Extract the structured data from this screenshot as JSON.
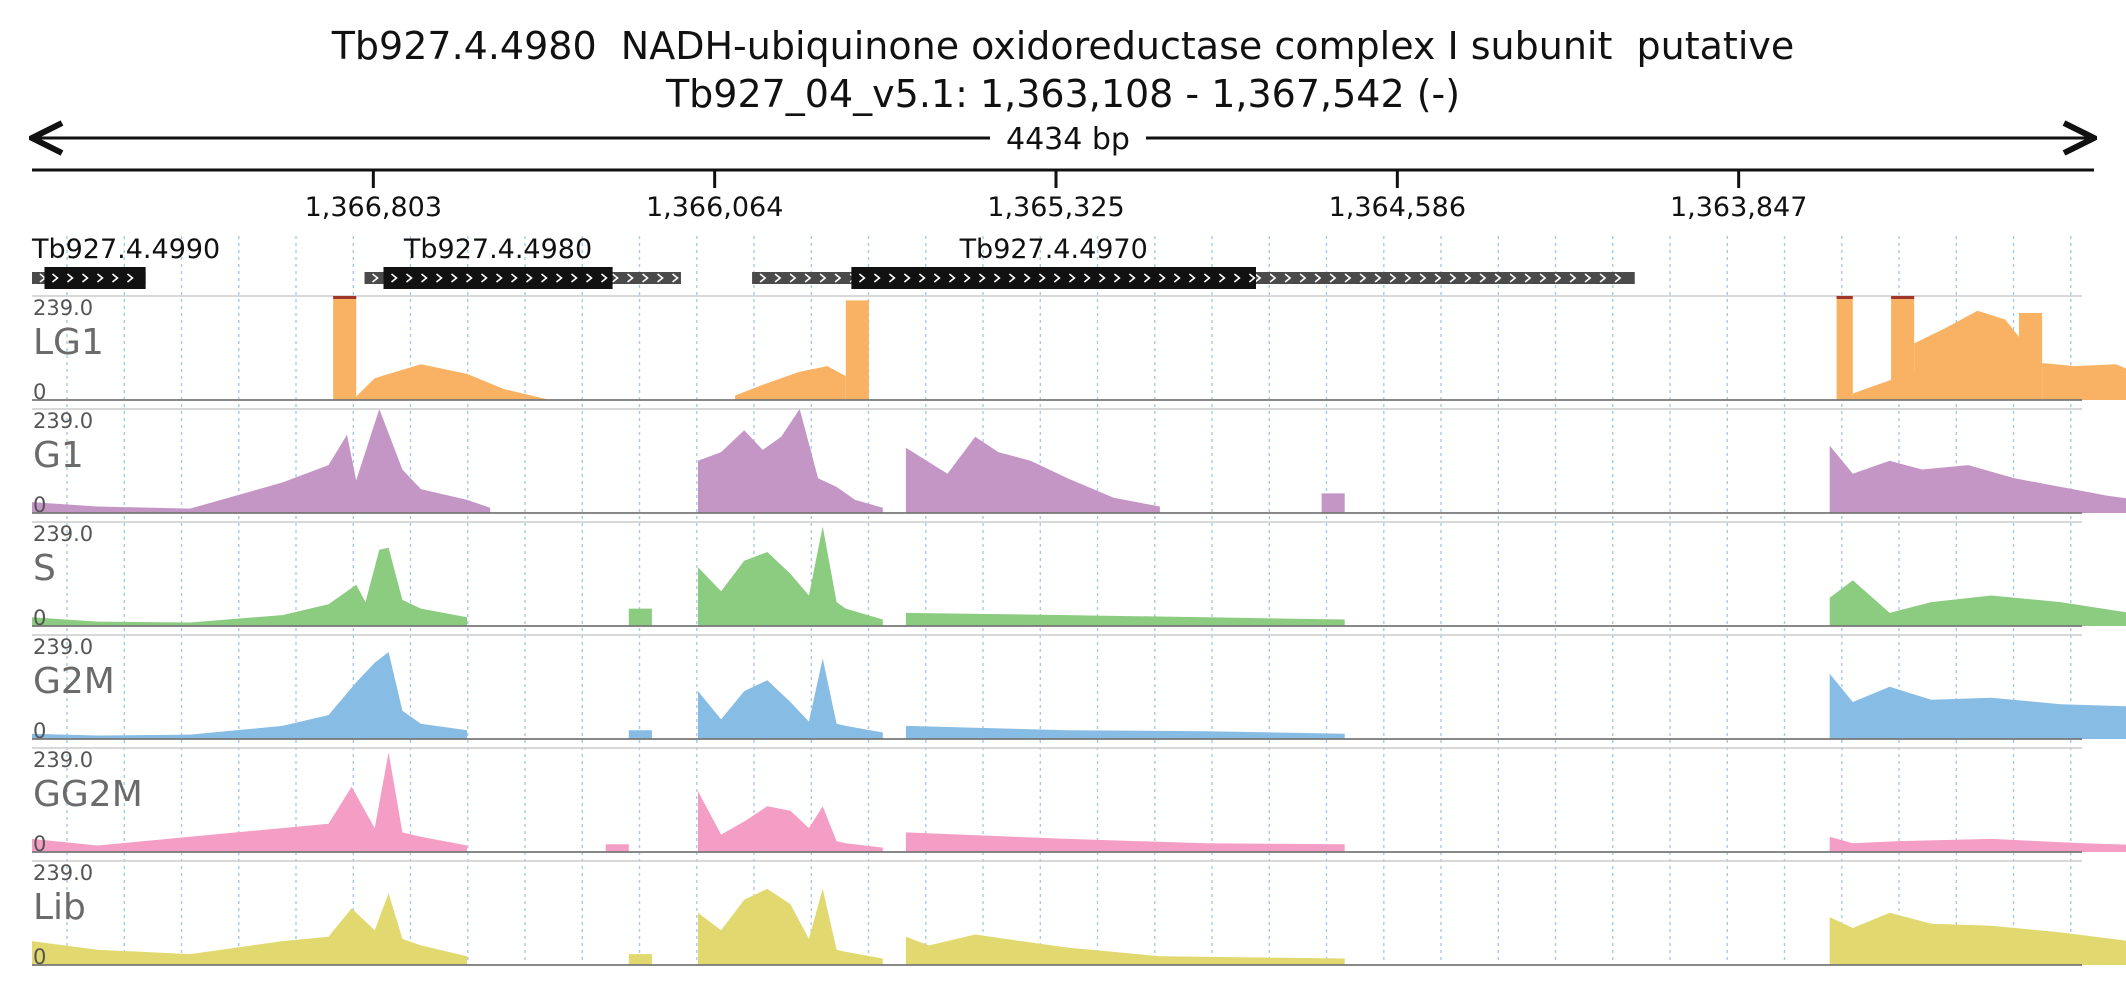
{
  "header": {
    "title": "Tb927.4.4980  NADH-ubiquinone oxidoreductase complex I subunit  putative",
    "locus": "Tb927_04_v5.1: 1,363,108 - 1,367,542 (-)",
    "span_label": "4434 bp"
  },
  "chart_data": {
    "type": "area",
    "region": {
      "chrom": "Tb927_04_v5.1",
      "start": 1363108,
      "end": 1367542,
      "strand": "-"
    },
    "coordinate_ticks": [
      {
        "pos": 1366803,
        "label": "1,366,803"
      },
      {
        "pos": 1366064,
        "label": "1,366,064"
      },
      {
        "pos": 1365325,
        "label": "1,365,325"
      },
      {
        "pos": 1364586,
        "label": "1,364,586"
      },
      {
        "pos": 1363847,
        "label": "1,363,847"
      }
    ],
    "genes": [
      {
        "name": "Tb927.4.4990",
        "show_label": true,
        "utr": [
          1367296,
          1367542
        ],
        "cds": [
          1367296,
          1367515
        ]
      },
      {
        "name": "Tb927.4.4980",
        "show_label": true,
        "utr": [
          1366137,
          1366822
        ],
        "cds": [
          1366285,
          1366781
        ]
      },
      {
        "name": "Tb927.4.4970",
        "show_label": true,
        "utr": [
          1364072,
          1365983
        ],
        "cds": [
          1364892,
          1365768
        ]
      }
    ],
    "ymin": 0,
    "ymax": 239.0,
    "ymax_label": "239.0",
    "ymin_label": "0",
    "grid": "vertical dashed",
    "tracks": [
      {
        "name": "LG1",
        "color": "#f9b263",
        "segments": [
          {
            "x": [
              1366890,
              1366840
            ],
            "y": [
              239,
              239
            ]
          },
          {
            "x": [
              1366840,
              1366800,
              1366700,
              1366600,
              1366520,
              1366420
            ],
            "y": [
              8,
              50,
              82,
              60,
              25,
              0
            ]
          },
          {
            "x": [
              1366020,
              1365960,
              1365880,
              1365820,
              1365780
            ],
            "y": [
              10,
              35,
              65,
              78,
              55
            ]
          },
          {
            "x": [
              1365780,
              1365730
            ],
            "y": [
              229,
              229
            ]
          },
          {
            "x": [
              1363635,
              1363600
            ],
            "y": [
              239,
              239
            ]
          },
          {
            "x": [
              1363600,
              1363520,
              1363450
            ],
            "y": [
              15,
              45,
              75
            ]
          },
          {
            "x": [
              1363517,
              1363467
            ],
            "y": [
              239,
              239
            ]
          },
          {
            "x": [
              1363467,
              1363400,
              1363330,
              1363270,
              1363240
            ],
            "y": [
              130,
              165,
              205,
              185,
              145
            ]
          },
          {
            "x": [
              1363240,
              1363190
            ],
            "y": [
              200,
              200
            ]
          },
          {
            "x": [
              1363190,
              1363120,
              1363030,
              1362970,
              1362930
            ],
            "y": [
              85,
              78,
              82,
              55,
              30
            ]
          },
          {
            "x": [
              1362940,
              1362890
            ],
            "y": [
              239,
              239
            ]
          }
        ]
      },
      {
        "name": "G1",
        "color": "#c496c5",
        "segments": [
          {
            "x": [
              1367542,
              1367400,
              1367200,
              1367000,
              1366900,
              1366860,
              1366840,
              1366790,
              1366740,
              1366700,
              1366600,
              1366550
            ],
            "y": [
              25,
              15,
              10,
              70,
              110,
              180,
              75,
              239,
              100,
              55,
              30,
              12
            ]
          },
          {
            "x": [
              1366100,
              1366050,
              1366000,
              1365960,
              1365920,
              1365880,
              1365840,
              1365800,
              1365760,
              1365700
            ],
            "y": [
              120,
              140,
              190,
              145,
              175,
              239,
              80,
              60,
              30,
              12
            ]
          },
          {
            "x": [
              1365650,
              1365560,
              1365500,
              1365450,
              1365380,
              1365300,
              1365200,
              1365100
            ],
            "y": [
              150,
              90,
              175,
              140,
              120,
              80,
              35,
              15
            ]
          },
          {
            "x": [
              1364750,
              1364700
            ],
            "y": [
              45,
              45
            ]
          },
          {
            "x": [
              1363650,
              1363600,
              1363520,
              1363450,
              1363350,
              1363250,
              1363150,
              1363050,
              1362950
            ],
            "y": [
              155,
              90,
              120,
              100,
              110,
              80,
              60,
              40,
              25
            ]
          },
          {
            "x": [
              1362900,
              1362850
            ],
            "y": [
              90,
              90
            ]
          }
        ]
      },
      {
        "name": "S",
        "color": "#8bcc80",
        "segments": [
          {
            "x": [
              1367542,
              1367400,
              1367200,
              1367000,
              1366900,
              1366840,
              1366820,
              1366790,
              1366770,
              1366740,
              1366700,
              1366600
            ],
            "y": [
              20,
              10,
              8,
              25,
              50,
              95,
              55,
              175,
              180,
              60,
              40,
              20
            ]
          },
          {
            "x": [
              1366250,
              1366200
            ],
            "y": [
              40,
              40
            ]
          },
          {
            "x": [
              1366100,
              1366050,
              1366000,
              1365950,
              1365900,
              1365860,
              1365830,
              1365800,
              1365780,
              1365700
            ],
            "y": [
              135,
              80,
              150,
              170,
              120,
              70,
              229,
              55,
              40,
              15
            ]
          },
          {
            "x": [
              1365650,
              1365300,
              1365000,
              1364700
            ],
            "y": [
              30,
              25,
              20,
              15
            ]
          },
          {
            "x": [
              1363650,
              1363600,
              1363520,
              1363430,
              1363300,
              1363150,
              1363000,
              1362950
            ],
            "y": [
              65,
              105,
              30,
              55,
              70,
              55,
              30,
              20
            ]
          },
          {
            "x": [
              1362900,
              1362850
            ],
            "y": [
              65,
              65
            ]
          }
        ]
      },
      {
        "name": "G2M",
        "color": "#87bce4",
        "segments": [
          {
            "x": [
              1367542,
              1367400,
              1367200,
              1367000,
              1366900,
              1366840,
              1366800,
              1366770,
              1366740,
              1366700,
              1366600
            ],
            "y": [
              12,
              8,
              10,
              30,
              55,
              130,
              175,
              200,
              65,
              35,
              20
            ]
          },
          {
            "x": [
              1366250,
              1366200
            ],
            "y": [
              20,
              20
            ]
          },
          {
            "x": [
              1366100,
              1366050,
              1366000,
              1365950,
              1365900,
              1365860,
              1365830,
              1365800,
              1365780,
              1365700
            ],
            "y": [
              110,
              45,
              110,
              135,
              85,
              40,
              185,
              35,
              30,
              15
            ]
          },
          {
            "x": [
              1365650,
              1365300,
              1365000,
              1364700
            ],
            "y": [
              30,
              20,
              18,
              12
            ]
          },
          {
            "x": [
              1363650,
              1363600,
              1363520,
              1363430,
              1363300,
              1363150,
              1363000,
              1362950
            ],
            "y": [
              150,
              85,
              120,
              90,
              95,
              80,
              75,
              40
            ]
          },
          {
            "x": [
              1362900,
              1362850
            ],
            "y": [
              35,
              35
            ]
          }
        ]
      },
      {
        "name": "GG2M",
        "color": "#f49ec6",
        "segments": [
          {
            "x": [
              1367542,
              1367400,
              1367200,
              1367000,
              1366900,
              1366850,
              1366800,
              1366770,
              1366740,
              1366700,
              1366600
            ],
            "y": [
              30,
              15,
              35,
              55,
              65,
              150,
              55,
              229,
              45,
              35,
              15
            ]
          },
          {
            "x": [
              1366300,
              1366250
            ],
            "y": [
              18,
              18
            ]
          },
          {
            "x": [
              1366100,
              1366050,
              1366000,
              1365950,
              1365900,
              1365860,
              1365830,
              1365800,
              1365780,
              1365700
            ],
            "y": [
              140,
              40,
              70,
              105,
              95,
              55,
              105,
              25,
              20,
              10
            ]
          },
          {
            "x": [
              1365650,
              1365300,
              1365000,
              1364700
            ],
            "y": [
              45,
              30,
              20,
              18
            ]
          },
          {
            "x": [
              1363650,
              1363600,
              1363500,
              1363300,
              1363100,
              1362950
            ],
            "y": [
              35,
              20,
              25,
              30,
              20,
              15
            ]
          },
          {
            "x": [
              1362900,
              1362850
            ],
            "y": [
              18,
              18
            ]
          }
        ]
      },
      {
        "name": "Lib",
        "color": "#e1d96f",
        "segments": [
          {
            "x": [
              1367542,
              1367400,
              1367200,
              1367000,
              1366900,
              1366850,
              1366800,
              1366770,
              1366740,
              1366700,
              1366600
            ],
            "y": [
              55,
              35,
              25,
              55,
              65,
              130,
              80,
              165,
              60,
              45,
              20
            ]
          },
          {
            "x": [
              1366250,
              1366200
            ],
            "y": [
              25,
              25
            ]
          },
          {
            "x": [
              1366100,
              1366050,
              1366000,
              1365950,
              1365900,
              1365860,
              1365830,
              1365800,
              1365780,
              1365700
            ],
            "y": [
              120,
              80,
              150,
              175,
              140,
              60,
              175,
              35,
              30,
              15
            ]
          },
          {
            "x": [
              1365650,
              1365600,
              1365500,
              1365400,
              1365300,
              1365200,
              1365100,
              1364700
            ],
            "y": [
              65,
              45,
              70,
              55,
              40,
              30,
              20,
              15
            ]
          },
          {
            "x": [
              1363650,
              1363600,
              1363520,
              1363430,
              1363300,
              1363150,
              1363000,
              1362950
            ],
            "y": [
              110,
              85,
              120,
              95,
              90,
              75,
              55,
              35
            ]
          },
          {
            "x": [
              1362900,
              1362850
            ],
            "y": [
              60,
              60
            ]
          }
        ]
      }
    ]
  }
}
